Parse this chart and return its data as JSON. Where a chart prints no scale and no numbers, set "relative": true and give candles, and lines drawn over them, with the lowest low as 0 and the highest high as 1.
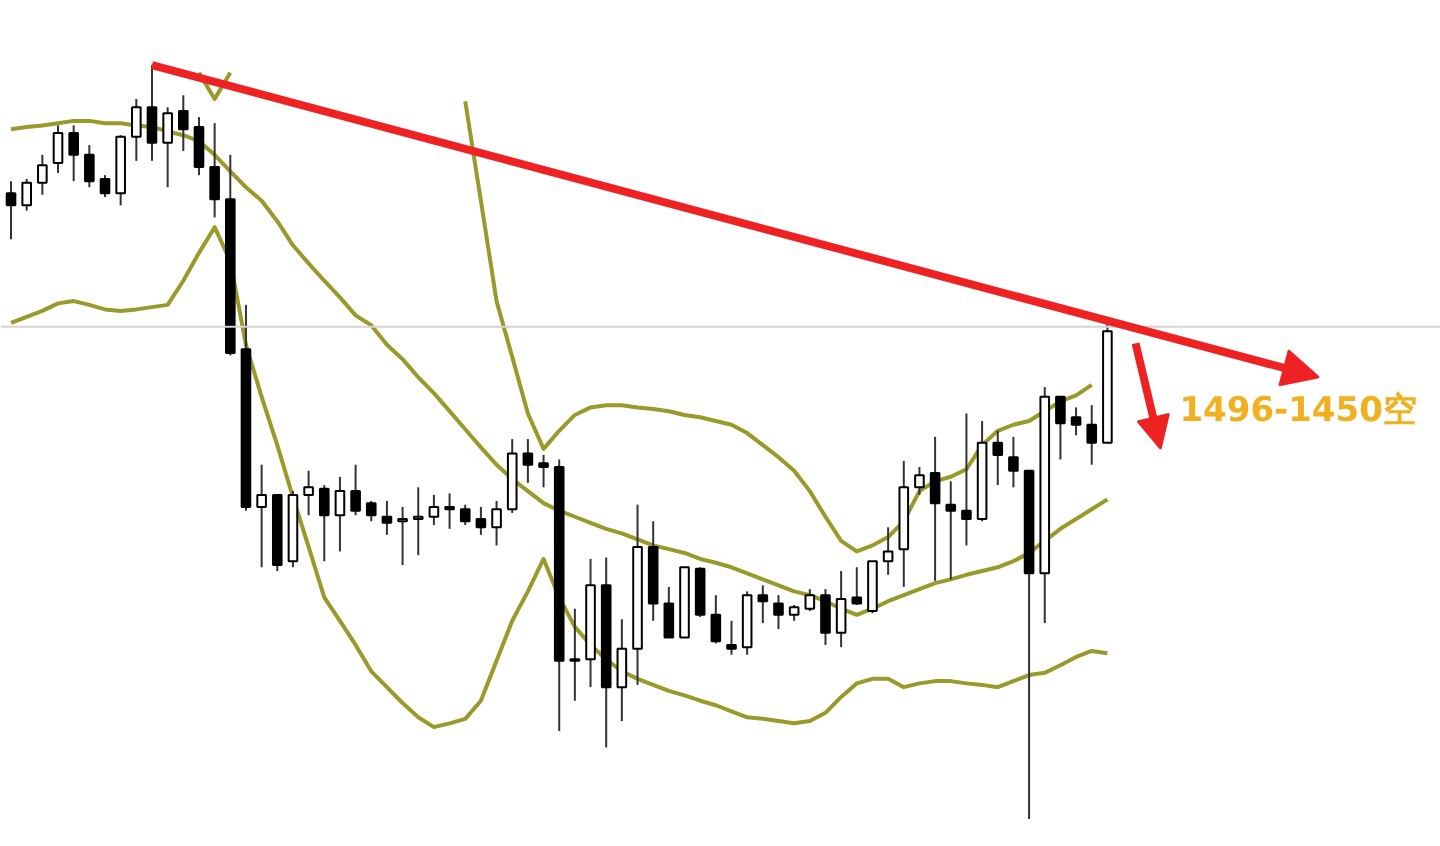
{
  "chart_data": {
    "type": "candlestick",
    "relative": true,
    "categories": [
      null,
      null,
      null,
      null,
      null,
      null,
      null,
      null,
      null,
      null,
      null,
      null,
      null,
      null,
      null,
      null,
      null,
      null,
      null,
      null,
      null,
      null,
      null,
      null,
      null,
      null,
      null,
      null,
      null,
      null,
      null,
      null,
      null,
      null,
      null,
      null,
      null,
      null,
      null,
      null,
      null,
      null,
      null,
      null,
      null,
      null,
      null,
      null,
      null,
      null,
      null,
      null,
      null,
      null,
      null,
      null,
      null,
      null,
      null,
      null,
      null,
      null,
      null,
      null,
      null,
      null,
      null,
      null,
      null,
      null,
      null
    ],
    "ohlc": [
      [
        0.83,
        0.846,
        0.769,
        0.814
      ],
      [
        0.814,
        0.849,
        0.807,
        0.844
      ],
      [
        0.844,
        0.881,
        0.828,
        0.867
      ],
      [
        0.87,
        0.92,
        0.857,
        0.91
      ],
      [
        0.91,
        0.92,
        0.846,
        0.881
      ],
      [
        0.881,
        0.894,
        0.838,
        0.846
      ],
      [
        0.849,
        0.854,
        0.825,
        0.83
      ],
      [
        0.83,
        0.907,
        0.814,
        0.905
      ],
      [
        0.905,
        0.955,
        0.873,
        0.944
      ],
      [
        0.944,
        1.0,
        0.873,
        0.897
      ],
      [
        0.897,
        0.944,
        0.838,
        0.936
      ],
      [
        0.939,
        0.96,
        0.886,
        0.915
      ],
      [
        0.918,
        0.931,
        0.854,
        0.865
      ],
      [
        0.865,
        0.923,
        0.798,
        0.822
      ],
      [
        0.822,
        0.881,
        0.615,
        0.618
      ],
      [
        0.623,
        0.682,
        0.409,
        0.414
      ],
      [
        0.414,
        0.47,
        0.334,
        0.43
      ],
      [
        0.43,
        0.43,
        0.329,
        0.337
      ],
      [
        0.342,
        0.435,
        0.334,
        0.43
      ],
      [
        0.43,
        0.462,
        0.403,
        0.44
      ],
      [
        0.438,
        0.443,
        0.342,
        0.403
      ],
      [
        0.403,
        0.454,
        0.355,
        0.435
      ],
      [
        0.435,
        0.47,
        0.403,
        0.409
      ],
      [
        0.419,
        0.422,
        0.395,
        0.403
      ],
      [
        0.401,
        0.422,
        0.377,
        0.393
      ],
      [
        0.395,
        0.414,
        0.337,
        0.398
      ],
      [
        0.398,
        0.44,
        0.35,
        0.401
      ],
      [
        0.401,
        0.43,
        0.39,
        0.414
      ],
      [
        0.414,
        0.432,
        0.385,
        0.411
      ],
      [
        0.411,
        0.417,
        0.39,
        0.395
      ],
      [
        0.398,
        0.414,
        0.377,
        0.387
      ],
      [
        0.387,
        0.422,
        0.363,
        0.411
      ],
      [
        0.411,
        0.504,
        0.406,
        0.485
      ],
      [
        0.485,
        0.504,
        0.446,
        0.47
      ],
      [
        0.472,
        0.483,
        0.44,
        0.467
      ],
      [
        0.467,
        0.477,
        0.117,
        0.21
      ],
      [
        0.21,
        0.279,
        0.157,
        0.212
      ],
      [
        0.212,
        0.345,
        0.175,
        0.31
      ],
      [
        0.31,
        0.347,
        0.095,
        0.175
      ],
      [
        0.175,
        0.265,
        0.13,
        0.226
      ],
      [
        0.226,
        0.417,
        0.178,
        0.361
      ],
      [
        0.361,
        0.395,
        0.263,
        0.286
      ],
      [
        0.286,
        0.308,
        0.241,
        0.241
      ],
      [
        0.241,
        0.334,
        0.241,
        0.334
      ],
      [
        0.332,
        0.334,
        0.268,
        0.271
      ],
      [
        0.271,
        0.297,
        0.233,
        0.236
      ],
      [
        0.231,
        0.263,
        0.218,
        0.226
      ],
      [
        0.228,
        0.302,
        0.218,
        0.297
      ],
      [
        0.297,
        0.31,
        0.26,
        0.289
      ],
      [
        0.286,
        0.297,
        0.252,
        0.271
      ],
      [
        0.271,
        0.284,
        0.263,
        0.281
      ],
      [
        0.279,
        0.305,
        0.276,
        0.297
      ],
      [
        0.297,
        0.305,
        0.231,
        0.247
      ],
      [
        0.247,
        0.329,
        0.228,
        0.292
      ],
      [
        0.294,
        0.334,
        0.284,
        0.286
      ],
      [
        0.276,
        0.342,
        0.273,
        0.342
      ],
      [
        0.342,
        0.387,
        0.324,
        0.355
      ],
      [
        0.358,
        0.475,
        0.308,
        0.44
      ],
      [
        0.44,
        0.467,
        0.43,
        0.456
      ],
      [
        0.459,
        0.507,
        0.316,
        0.419
      ],
      [
        0.417,
        0.448,
        0.318,
        0.409
      ],
      [
        0.409,
        0.538,
        0.363,
        0.398
      ],
      [
        0.398,
        0.528,
        0.395,
        0.499
      ],
      [
        0.499,
        0.515,
        0.443,
        0.483
      ],
      [
        0.48,
        0.507,
        0.44,
        0.462
      ],
      [
        0.462,
        0.462,
        0.0,
        0.326
      ],
      [
        0.326,
        0.573,
        0.26,
        0.56
      ],
      [
        0.56,
        0.56,
        0.477,
        0.525
      ],
      [
        0.533,
        0.546,
        0.509,
        0.523
      ],
      [
        0.523,
        0.549,
        0.47,
        0.499
      ],
      [
        0.499,
        0.661,
        0.499,
        0.647
      ]
    ],
    "series": [
      {
        "type": "line",
        "color": "#9a9a2a",
        "values": [
          null,
          null,
          null,
          null,
          null,
          null,
          null,
          null,
          null,
          null,
          null,
          null,
          0.99,
          0.955,
          0.99,
          null,
          null,
          null,
          null,
          null,
          null,
          null,
          null,
          null,
          null,
          null,
          null,
          null,
          null,
          0.952,
          0.82,
          0.687,
          0.613,
          0.538,
          0.491,
          0.515,
          0.536,
          0.546,
          0.549,
          0.549,
          0.546,
          0.544,
          0.541,
          0.536,
          0.533,
          0.528,
          0.523,
          0.512,
          0.496,
          0.48,
          0.462,
          0.435,
          0.401,
          0.369,
          0.355,
          0.363,
          0.374,
          0.395,
          0.435,
          0.448,
          0.454,
          0.464,
          0.496,
          0.515,
          0.523,
          0.528,
          0.541,
          0.554,
          0.562,
          0.576,
          null
        ]
      },
      {
        "type": "line",
        "color": "#9a9a2a",
        "values": [
          0.915,
          0.918,
          0.92,
          0.923,
          0.926,
          0.926,
          0.923,
          0.923,
          0.92,
          0.918,
          0.912,
          0.907,
          0.899,
          0.881,
          0.859,
          0.838,
          0.82,
          0.793,
          0.761,
          0.737,
          0.714,
          0.692,
          0.668,
          0.655,
          0.629,
          0.61,
          0.586,
          0.565,
          0.541,
          0.517,
          0.493,
          0.47,
          0.451,
          0.435,
          0.419,
          0.409,
          0.401,
          0.393,
          0.385,
          0.379,
          0.371,
          0.363,
          0.358,
          0.353,
          0.345,
          0.34,
          0.334,
          0.326,
          0.318,
          0.31,
          0.302,
          0.297,
          0.289,
          0.279,
          0.271,
          0.279,
          0.289,
          0.297,
          0.305,
          0.313,
          0.318,
          0.324,
          0.329,
          0.334,
          0.342,
          0.353,
          0.369,
          0.385,
          0.398,
          0.411,
          0.424
        ]
      },
      {
        "type": "line",
        "color": "#9a9a2a",
        "values": [
          0.658,
          0.666,
          0.674,
          0.684,
          0.687,
          0.682,
          0.676,
          0.674,
          0.676,
          0.679,
          0.682,
          0.714,
          0.751,
          0.785,
          0.74,
          0.629,
          0.56,
          0.496,
          0.427,
          0.361,
          0.294,
          0.263,
          0.231,
          0.196,
          0.175,
          0.154,
          0.135,
          0.122,
          0.127,
          0.133,
          0.157,
          0.21,
          0.263,
          0.302,
          0.345,
          0.294,
          0.255,
          0.231,
          0.212,
          0.196,
          0.186,
          0.178,
          0.17,
          0.164,
          0.157,
          0.151,
          0.143,
          0.135,
          0.133,
          0.13,
          0.127,
          0.13,
          0.141,
          0.162,
          0.18,
          0.186,
          0.186,
          0.175,
          0.18,
          0.183,
          0.183,
          0.18,
          0.178,
          0.175,
          0.183,
          0.191,
          0.194,
          0.204,
          0.215,
          0.223,
          0.22
        ]
      }
    ],
    "ref_lines": [
      {
        "axis": "y",
        "value": 0.653,
        "color": "#d4d4d4"
      }
    ],
    "annotations": [
      "1496-1450空"
    ]
  }
}
